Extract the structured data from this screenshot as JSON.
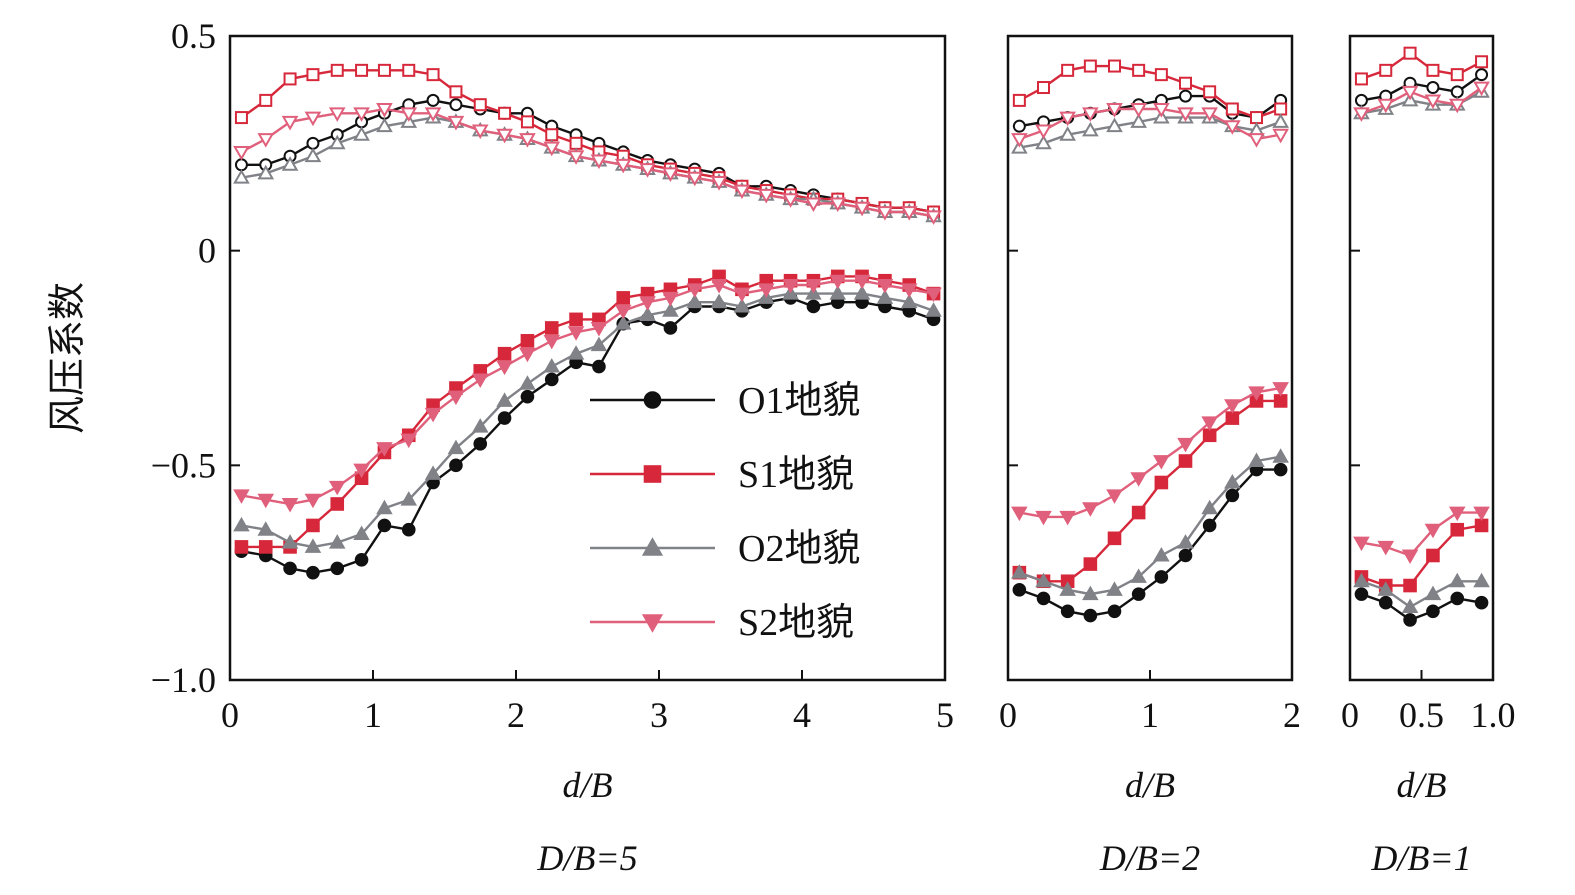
{
  "chart_data": {
    "type": "line",
    "ylabel": "风压系数",
    "ylim": [
      -1.0,
      0.5
    ],
    "yticks": [
      "0.5",
      "0",
      "−0.5",
      "−1.0"
    ],
    "legend": [
      {
        "name": "O1地貌",
        "color": "#111111",
        "marker": "circle"
      },
      {
        "name": "S1地貌",
        "color": "#d6283a",
        "marker": "square"
      },
      {
        "name": "O2地貌",
        "color": "#808288",
        "marker": "triangle-up"
      },
      {
        "name": "S2地貌",
        "color": "#e0607c",
        "marker": "triangle-down"
      }
    ],
    "panels": [
      {
        "xlabel": "d/B",
        "caption": "D/B=5",
        "xlim": [
          0,
          5
        ],
        "xticks": [
          "0",
          "1",
          "2",
          "3",
          "4",
          "5"
        ],
        "x": [
          0.08,
          0.25,
          0.42,
          0.58,
          0.75,
          0.92,
          1.08,
          1.25,
          1.42,
          1.58,
          1.75,
          1.92,
          2.08,
          2.25,
          2.42,
          2.58,
          2.75,
          2.92,
          3.08,
          3.25,
          3.42,
          3.58,
          3.75,
          3.92,
          4.08,
          4.25,
          4.42,
          4.58,
          4.75,
          4.92
        ],
        "series": [
          {
            "name": "O1地貌 upper",
            "values": [
              0.2,
              0.2,
              0.22,
              0.25,
              0.27,
              0.3,
              0.32,
              0.34,
              0.35,
              0.34,
              0.33,
              0.32,
              0.32,
              0.29,
              0.27,
              0.25,
              0.23,
              0.21,
              0.2,
              0.19,
              0.18,
              0.15,
              0.15,
              0.14,
              0.13,
              0.12,
              0.11,
              0.1,
              0.1,
              0.09
            ]
          },
          {
            "name": "O1地貌 lower",
            "values": [
              -0.7,
              -0.71,
              -0.74,
              -0.75,
              -0.74,
              -0.72,
              -0.64,
              -0.65,
              -0.54,
              -0.5,
              -0.45,
              -0.39,
              -0.34,
              -0.3,
              -0.26,
              -0.27,
              -0.17,
              -0.16,
              -0.18,
              -0.13,
              -0.13,
              -0.14,
              -0.12,
              -0.11,
              -0.13,
              -0.12,
              -0.12,
              -0.13,
              -0.14,
              -0.16
            ]
          },
          {
            "name": "S1地貌 upper",
            "values": [
              0.31,
              0.35,
              0.4,
              0.41,
              0.42,
              0.42,
              0.42,
              0.42,
              0.41,
              0.37,
              0.34,
              0.32,
              0.3,
              0.27,
              0.25,
              0.23,
              0.22,
              0.2,
              0.19,
              0.18,
              0.17,
              0.15,
              0.14,
              0.13,
              0.12,
              0.12,
              0.11,
              0.1,
              0.1,
              0.09
            ]
          },
          {
            "name": "S1地貌 lower",
            "values": [
              -0.69,
              -0.69,
              -0.69,
              -0.64,
              -0.59,
              -0.53,
              -0.47,
              -0.43,
              -0.36,
              -0.32,
              -0.28,
              -0.24,
              -0.21,
              -0.18,
              -0.16,
              -0.16,
              -0.11,
              -0.1,
              -0.09,
              -0.08,
              -0.06,
              -0.09,
              -0.07,
              -0.07,
              -0.07,
              -0.06,
              -0.06,
              -0.07,
              -0.08,
              -0.1
            ]
          },
          {
            "name": "O2地貌 upper",
            "values": [
              0.17,
              0.18,
              0.2,
              0.22,
              0.25,
              0.27,
              0.29,
              0.3,
              0.31,
              0.3,
              0.28,
              0.27,
              0.26,
              0.24,
              0.22,
              0.21,
              0.2,
              0.19,
              0.18,
              0.17,
              0.16,
              0.14,
              0.13,
              0.12,
              0.12,
              0.11,
              0.1,
              0.09,
              0.09,
              0.08
            ]
          },
          {
            "name": "O2地貌 lower",
            "values": [
              -0.64,
              -0.65,
              -0.68,
              -0.69,
              -0.68,
              -0.66,
              -0.6,
              -0.58,
              -0.52,
              -0.46,
              -0.41,
              -0.35,
              -0.31,
              -0.27,
              -0.24,
              -0.22,
              -0.17,
              -0.15,
              -0.14,
              -0.12,
              -0.12,
              -0.13,
              -0.11,
              -0.1,
              -0.1,
              -0.1,
              -0.1,
              -0.11,
              -0.12,
              -0.14
            ]
          },
          {
            "name": "S2地貌 upper",
            "values": [
              0.23,
              0.26,
              0.3,
              0.31,
              0.32,
              0.32,
              0.33,
              0.32,
              0.32,
              0.3,
              0.28,
              0.27,
              0.26,
              0.24,
              0.22,
              0.21,
              0.2,
              0.19,
              0.18,
              0.17,
              0.16,
              0.14,
              0.13,
              0.12,
              0.11,
              0.11,
              0.1,
              0.09,
              0.09,
              0.08
            ]
          },
          {
            "name": "S2地貌 lower",
            "values": [
              -0.57,
              -0.58,
              -0.59,
              -0.58,
              -0.55,
              -0.51,
              -0.46,
              -0.44,
              -0.38,
              -0.34,
              -0.3,
              -0.27,
              -0.24,
              -0.21,
              -0.19,
              -0.18,
              -0.14,
              -0.12,
              -0.11,
              -0.09,
              -0.08,
              -0.1,
              -0.09,
              -0.08,
              -0.08,
              -0.07,
              -0.07,
              -0.08,
              -0.09,
              -0.1
            ]
          }
        ]
      },
      {
        "xlabel": "d/B",
        "caption": "D/B=2",
        "xlim": [
          0,
          2
        ],
        "xticks": [
          "0",
          "1",
          "2"
        ],
        "x": [
          0.08,
          0.25,
          0.42,
          0.58,
          0.75,
          0.92,
          1.08,
          1.25,
          1.42,
          1.58,
          1.75,
          1.92
        ],
        "series": [
          {
            "name": "O1地貌 upper",
            "values": [
              0.29,
              0.3,
              0.31,
              0.32,
              0.33,
              0.34,
              0.35,
              0.36,
              0.36,
              0.32,
              0.31,
              0.35
            ]
          },
          {
            "name": "O1地貌 lower",
            "values": [
              -0.79,
              -0.81,
              -0.84,
              -0.85,
              -0.84,
              -0.8,
              -0.76,
              -0.71,
              -0.64,
              -0.57,
              -0.51,
              -0.51
            ]
          },
          {
            "name": "S1地貌 upper",
            "values": [
              0.35,
              0.38,
              0.42,
              0.43,
              0.43,
              0.42,
              0.41,
              0.39,
              0.37,
              0.33,
              0.31,
              0.33
            ]
          },
          {
            "name": "S1地貌 lower",
            "values": [
              -0.75,
              -0.77,
              -0.77,
              -0.73,
              -0.67,
              -0.61,
              -0.54,
              -0.49,
              -0.43,
              -0.39,
              -0.35,
              -0.35
            ]
          },
          {
            "name": "O2地貌 upper",
            "values": [
              0.24,
              0.25,
              0.27,
              0.28,
              0.29,
              0.3,
              0.31,
              0.31,
              0.31,
              0.29,
              0.28,
              0.3
            ]
          },
          {
            "name": "O2地貌 lower",
            "values": [
              -0.75,
              -0.77,
              -0.79,
              -0.8,
              -0.79,
              -0.76,
              -0.71,
              -0.68,
              -0.6,
              -0.54,
              -0.49,
              -0.48
            ]
          },
          {
            "name": "S2地貌 upper",
            "values": [
              0.26,
              0.28,
              0.31,
              0.32,
              0.33,
              0.33,
              0.33,
              0.32,
              0.32,
              0.29,
              0.26,
              0.27
            ]
          },
          {
            "name": "S2地貌 lower",
            "values": [
              -0.61,
              -0.62,
              -0.62,
              -0.6,
              -0.57,
              -0.53,
              -0.49,
              -0.45,
              -0.4,
              -0.36,
              -0.33,
              -0.32
            ]
          }
        ]
      },
      {
        "xlabel": "d/B",
        "caption": "D/B=1",
        "xlim": [
          0,
          1
        ],
        "xticks": [
          "0",
          "0.5",
          "1.0"
        ],
        "x": [
          0.08,
          0.25,
          0.42,
          0.58,
          0.75,
          0.92
        ],
        "series": [
          {
            "name": "O1地貌 upper",
            "values": [
              0.35,
              0.36,
              0.39,
              0.38,
              0.37,
              0.41
            ]
          },
          {
            "name": "O1地貌 lower",
            "values": [
              -0.8,
              -0.82,
              -0.86,
              -0.84,
              -0.81,
              -0.82
            ]
          },
          {
            "name": "S1地貌 upper",
            "values": [
              0.4,
              0.42,
              0.46,
              0.42,
              0.41,
              0.44
            ]
          },
          {
            "name": "S1地貌 lower",
            "values": [
              -0.76,
              -0.78,
              -0.78,
              -0.71,
              -0.65,
              -0.64
            ]
          },
          {
            "name": "O2地貌 upper",
            "values": [
              0.32,
              0.33,
              0.35,
              0.34,
              0.34,
              0.37
            ]
          },
          {
            "name": "O2地貌 lower",
            "values": [
              -0.77,
              -0.79,
              -0.83,
              -0.8,
              -0.77,
              -0.77
            ]
          },
          {
            "name": "S2地貌 upper",
            "values": [
              0.32,
              0.34,
              0.37,
              0.35,
              0.34,
              0.38
            ]
          },
          {
            "name": "S2地貌 lower",
            "values": [
              -0.68,
              -0.69,
              -0.71,
              -0.65,
              -0.61,
              -0.61
            ]
          }
        ]
      }
    ]
  }
}
